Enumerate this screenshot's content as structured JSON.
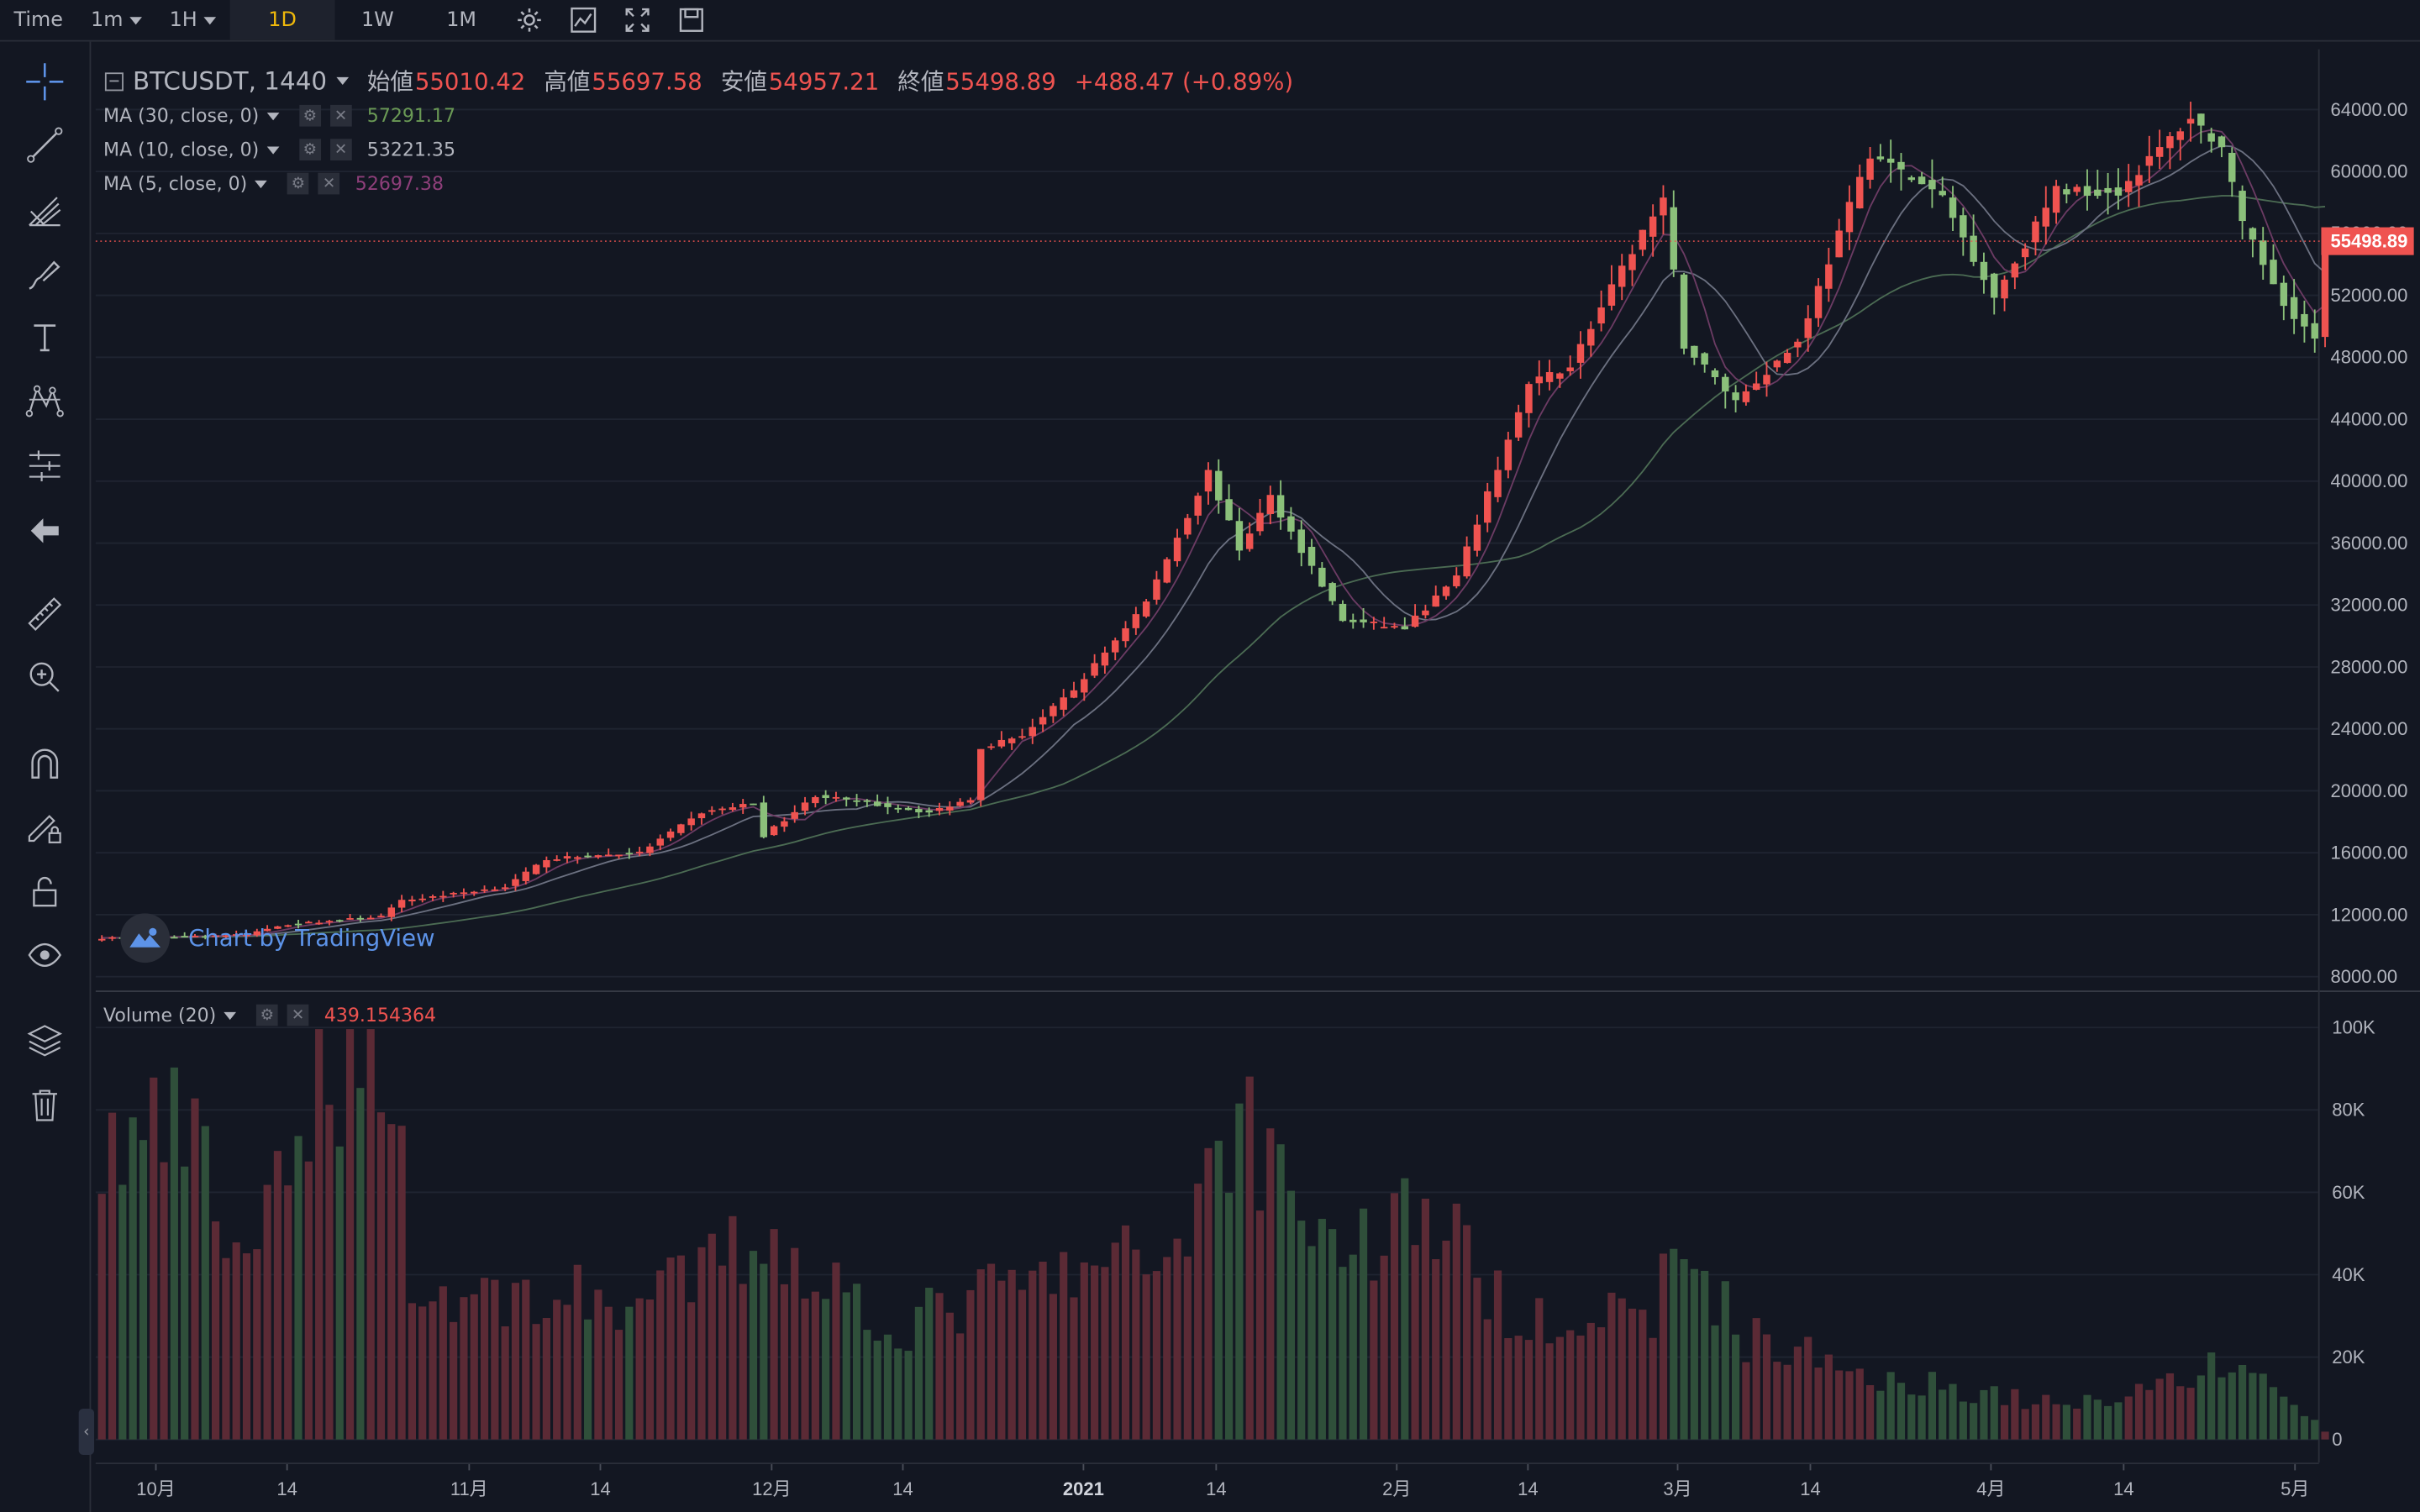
{
  "toolbar": {
    "time_label": "Time",
    "intervals": [
      {
        "label": "1m",
        "dropdown": true
      },
      {
        "label": "1H",
        "dropdown": true
      },
      {
        "label": "1D",
        "active": true
      },
      {
        "label": "1W"
      },
      {
        "label": "1M"
      }
    ],
    "icons": [
      "settings-icon",
      "indicators-icon",
      "fullscreen-icon",
      "save-icon"
    ]
  },
  "left_toolbar": {
    "icons": [
      "crosshair-icon",
      "trend-line-icon",
      "pitchfork-icon",
      "brush-icon",
      "text-icon",
      "pattern-icon",
      "prediction-icon",
      "back-arrow-icon",
      "ruler-icon",
      "zoom-in-icon",
      "magnet-icon",
      "lock-drawing-icon",
      "unlock-icon",
      "eye-icon",
      "layers-icon",
      "trash-icon"
    ],
    "collapse_glyph": "‹"
  },
  "legend": {
    "symbol": "BTCUSDT, 1440",
    "open_label": "始値",
    "open": "55010.42",
    "high_label": "高値",
    "high": "55697.58",
    "low_label": "安値",
    "low": "54957.21",
    "close_label": "終値",
    "close": "55498.89",
    "change": "+488.47 (+0.89%)"
  },
  "indicators": [
    {
      "name": "MA (30, close, 0)",
      "value": "57291.17",
      "color": "#6a9955"
    },
    {
      "name": "MA (10, close, 0)",
      "value": "53221.35",
      "color": "#b2b5be"
    },
    {
      "name": "MA (5, close, 0)",
      "value": "52697.38",
      "color": "#8e3f7a"
    }
  ],
  "volume_indicator": {
    "name": "Volume (20)",
    "value": "439.154364",
    "color": "#ef5350"
  },
  "watermark": "Chart by TradingView",
  "colors": {
    "background": "#131722",
    "up": "#ef5350",
    "down": "#8bc07a",
    "vol_up": "#5b2a35",
    "vol_down": "#2f4f3a",
    "accent": "#f0b90b",
    "price_line": "#ef5350"
  },
  "chart_data": {
    "type": "candlestick",
    "symbol": "BTCUSDT",
    "interval": "1D",
    "price_axis": {
      "ticks": [
        "64000.00",
        "60000.00",
        "56000.00",
        "52000.00",
        "48000.00",
        "44000.00",
        "40000.00",
        "36000.00",
        "32000.00",
        "28000.00",
        "24000.00",
        "20000.00",
        "16000.00",
        "12000.00",
        "8000.00"
      ],
      "ylim": [
        7800,
        67000
      ],
      "current_price_label": "55498.89",
      "current_price": 55498.89
    },
    "volume_axis": {
      "ticks": [
        "100K",
        "80K",
        "60K",
        "40K",
        "20K",
        "0"
      ],
      "ylim": [
        0,
        100000
      ]
    },
    "time_axis": {
      "labels": [
        "10月",
        "14",
        "11月",
        "14",
        "12月",
        "14",
        "2021",
        "14",
        "2月",
        "14",
        "3月",
        "14",
        "4月",
        "14",
        "5月"
      ],
      "bold": [
        "2021"
      ],
      "start_date": "2020-09-23",
      "end_date": "2021-04-26"
    },
    "price_keypoints": [
      {
        "date": "2020-09-23",
        "price": 10500
      },
      {
        "date": "2020-10-07",
        "price": 10700
      },
      {
        "date": "2020-10-10",
        "price": 11300
      },
      {
        "date": "2020-10-20",
        "price": 11900
      },
      {
        "date": "2020-10-22",
        "price": 12900
      },
      {
        "date": "2020-11-01",
        "price": 13800
      },
      {
        "date": "2020-11-05",
        "price": 15600
      },
      {
        "date": "2020-11-14",
        "price": 16000
      },
      {
        "date": "2020-11-20",
        "price": 18600
      },
      {
        "date": "2020-11-25",
        "price": 19200
      },
      {
        "date": "2020-11-26",
        "price": 17100
      },
      {
        "date": "2020-12-01",
        "price": 19700
      },
      {
        "date": "2020-12-12",
        "price": 18600
      },
      {
        "date": "2020-12-16",
        "price": 19500
      },
      {
        "date": "2020-12-17",
        "price": 22800
      },
      {
        "date": "2020-12-21",
        "price": 23600
      },
      {
        "date": "2020-12-26",
        "price": 26500
      },
      {
        "date": "2021-01-02",
        "price": 32200
      },
      {
        "date": "2021-01-08",
        "price": 40600
      },
      {
        "date": "2021-01-11",
        "price": 35600
      },
      {
        "date": "2021-01-14",
        "price": 39000
      },
      {
        "date": "2021-01-21",
        "price": 31000
      },
      {
        "date": "2021-01-27",
        "price": 30500
      },
      {
        "date": "2021-02-01",
        "price": 33800
      },
      {
        "date": "2021-02-08",
        "price": 46200
      },
      {
        "date": "2021-02-12",
        "price": 47500
      },
      {
        "date": "2021-02-19",
        "price": 56100
      },
      {
        "date": "2021-02-21",
        "price": 58000
      },
      {
        "date": "2021-02-23",
        "price": 48800
      },
      {
        "date": "2021-02-28",
        "price": 45200
      },
      {
        "date": "2021-03-06",
        "price": 49000
      },
      {
        "date": "2021-03-13",
        "price": 61200
      },
      {
        "date": "2021-03-20",
        "price": 58300
      },
      {
        "date": "2021-03-25",
        "price": 51900
      },
      {
        "date": "2021-03-31",
        "price": 58800
      },
      {
        "date": "2021-04-06",
        "price": 58700
      },
      {
        "date": "2021-04-13",
        "price": 63500
      },
      {
        "date": "2021-04-16",
        "price": 61500
      },
      {
        "date": "2021-04-18",
        "price": 56500
      },
      {
        "date": "2021-04-22",
        "price": 51600
      },
      {
        "date": "2021-04-25",
        "price": 49100
      },
      {
        "date": "2021-04-26",
        "price": 55500
      }
    ],
    "volume_keypoints": [
      {
        "date": "2020-09-23",
        "volume": 70000
      },
      {
        "date": "2020-10-01",
        "volume": 75000
      },
      {
        "date": "2020-10-06",
        "volume": 45000
      },
      {
        "date": "2020-10-12",
        "volume": 62000
      },
      {
        "date": "2020-10-14",
        "volume": 93000
      },
      {
        "date": "2020-10-21",
        "volume": 100000
      },
      {
        "date": "2020-10-23",
        "volume": 35000
      },
      {
        "date": "2020-11-05",
        "volume": 35000
      },
      {
        "date": "2020-11-15",
        "volume": 33000
      },
      {
        "date": "2020-11-26",
        "volume": 50000
      },
      {
        "date": "2020-12-09",
        "volume": 27000
      },
      {
        "date": "2020-12-17",
        "volume": 35000
      },
      {
        "date": "2021-01-04",
        "volume": 45000
      },
      {
        "date": "2021-01-11",
        "volume": 80000
      },
      {
        "date": "2021-01-21",
        "volume": 45000
      },
      {
        "date": "2021-01-29",
        "volume": 58000
      },
      {
        "date": "2021-02-05",
        "volume": 33000
      },
      {
        "date": "2021-02-19",
        "volume": 28000
      },
      {
        "date": "2021-02-23",
        "volume": 47000
      },
      {
        "date": "2021-03-01",
        "volume": 25000
      },
      {
        "date": "2021-03-13",
        "volume": 16000
      },
      {
        "date": "2021-04-01",
        "volume": 8000
      },
      {
        "date": "2021-04-18",
        "volume": 19000
      },
      {
        "date": "2021-04-26",
        "volume": 2000
      }
    ]
  }
}
